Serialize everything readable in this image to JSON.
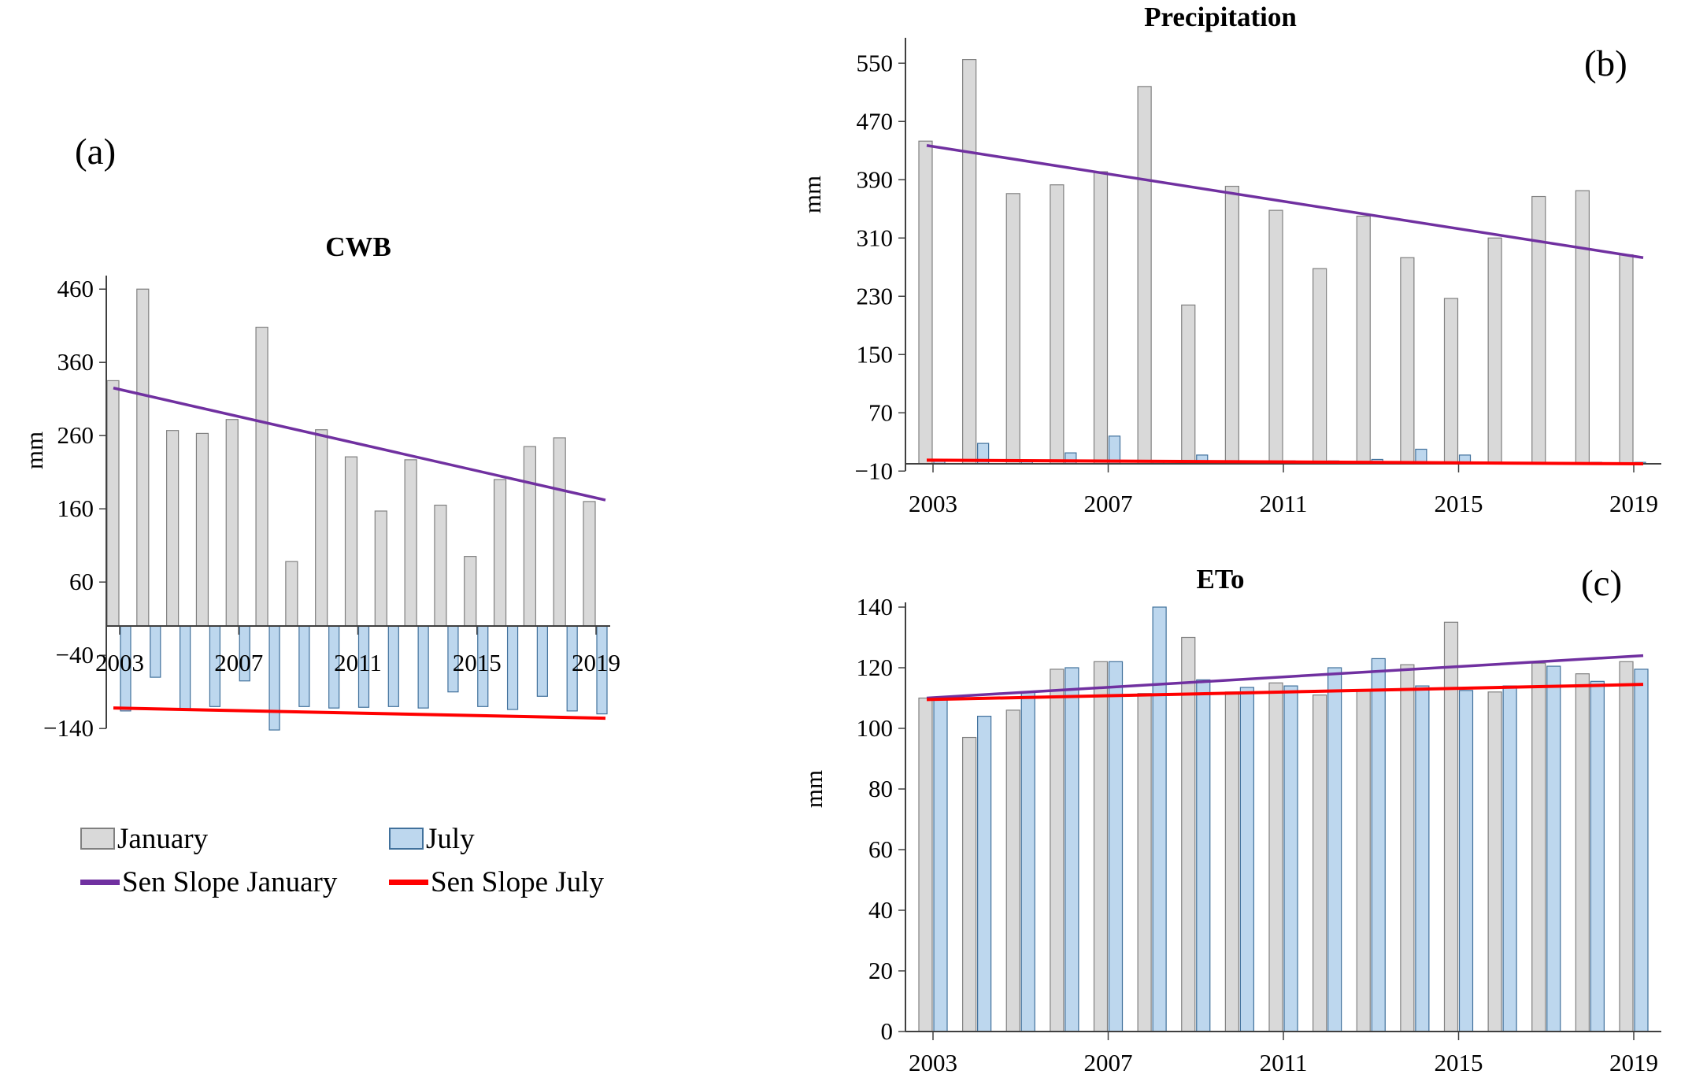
{
  "figure": {
    "background": "#ffffff",
    "panels": {
      "a": {
        "label": "(a)",
        "title": "CWB",
        "ylabel": "mm"
      },
      "b": {
        "label": "(b)",
        "title": "Precipitation",
        "ylabel": "mm"
      },
      "c": {
        "label": "(c)",
        "title": "ETo",
        "ylabel": "mm"
      }
    },
    "legend": {
      "january": "January",
      "july": "July",
      "sen_january": "Sen Slope January",
      "sen_july": "Sen Slope July"
    },
    "colors": {
      "january_fill": "#d9d9d9",
      "january_stroke": "#808080",
      "july_fill": "#bdd7ee",
      "july_stroke": "#41719c",
      "sen_january": "#7030a0",
      "sen_july": "#ff0000",
      "axis": "#404040",
      "text": "#000000"
    }
  },
  "chart_data": [
    {
      "id": "a",
      "type": "bar",
      "title": "CWB",
      "xlabel": "",
      "ylabel": "mm",
      "x": [
        2003,
        2004,
        2005,
        2006,
        2007,
        2008,
        2009,
        2010,
        2011,
        2012,
        2013,
        2014,
        2015,
        2016,
        2017,
        2018,
        2019
      ],
      "x_tick_labels": [
        2003,
        2007,
        2011,
        2015,
        2019
      ],
      "y_ticks": [
        460,
        360,
        260,
        160,
        60,
        -40,
        -140
      ],
      "ylim": [
        -150,
        480
      ],
      "grid": false,
      "legend_position": "below",
      "series": [
        {
          "name": "January",
          "role": "january_bars",
          "values": [
            335,
            460,
            267,
            263,
            282,
            408,
            88,
            268,
            231,
            157,
            227,
            165,
            95,
            200,
            245,
            257,
            170
          ]
        },
        {
          "name": "July",
          "role": "july_bars",
          "values": [
            -116,
            -70,
            -114,
            -110,
            -75,
            -142,
            -110,
            -112,
            -111,
            -110,
            -112,
            -90,
            -110,
            -114,
            -96,
            -116,
            -120
          ]
        },
        {
          "name": "Sen Slope January",
          "role": "sen_january",
          "trend": {
            "start": 325,
            "end": 172
          }
        },
        {
          "name": "Sen Slope July",
          "role": "sen_july",
          "trend": {
            "start": -112,
            "end": -126
          }
        }
      ]
    },
    {
      "id": "b",
      "type": "bar",
      "title": "Precipitation",
      "xlabel": "",
      "ylabel": "mm",
      "x": [
        2003,
        2004,
        2005,
        2006,
        2007,
        2008,
        2009,
        2010,
        2011,
        2012,
        2013,
        2014,
        2015,
        2016,
        2017,
        2018,
        2019
      ],
      "x_tick_labels": [
        2003,
        2007,
        2011,
        2015,
        2019
      ],
      "y_ticks": [
        550,
        470,
        390,
        310,
        230,
        150,
        70,
        -10
      ],
      "ylim": [
        -10,
        575
      ],
      "grid": false,
      "legend_position": "none",
      "series": [
        {
          "name": "January",
          "role": "january_bars",
          "values": [
            443,
            555,
            371,
            383,
            401,
            518,
            218,
            381,
            348,
            268,
            340,
            283,
            227,
            310,
            367,
            375,
            287
          ]
        },
        {
          "name": "July",
          "role": "july_bars",
          "values": [
            5,
            28,
            4,
            15,
            38,
            4,
            12,
            4,
            4,
            4,
            6,
            20,
            12,
            2,
            2,
            2,
            2
          ]
        },
        {
          "name": "Sen Slope January",
          "role": "sen_january",
          "trend": {
            "start": 437,
            "end": 283
          }
        },
        {
          "name": "Sen Slope July",
          "role": "sen_july",
          "trend": {
            "start": 5,
            "end": 0
          }
        }
      ]
    },
    {
      "id": "c",
      "type": "bar",
      "title": "ETo",
      "xlabel": "",
      "ylabel": "mm",
      "x": [
        2003,
        2004,
        2005,
        2006,
        2007,
        2008,
        2009,
        2010,
        2011,
        2012,
        2013,
        2014,
        2015,
        2016,
        2017,
        2018,
        2019
      ],
      "x_tick_labels": [
        2003,
        2007,
        2011,
        2015,
        2019
      ],
      "y_ticks": [
        140,
        120,
        100,
        80,
        60,
        40,
        20,
        0
      ],
      "ylim": [
        0,
        142
      ],
      "grid": false,
      "legend_position": "none",
      "series": [
        {
          "name": "January",
          "role": "january_bars",
          "values": [
            110,
            97,
            106,
            119.5,
            122,
            111.5,
            130,
            112,
            115,
            111,
            112.5,
            121,
            135,
            112,
            121.5,
            118,
            122
          ]
        },
        {
          "name": "July",
          "role": "july_bars",
          "values": [
            110,
            104,
            112,
            120,
            122,
            140,
            116,
            113.5,
            114,
            120,
            123,
            114,
            112.5,
            114,
            120.5,
            115.5,
            119.5
          ]
        },
        {
          "name": "Sen Slope January",
          "role": "sen_january",
          "trend": {
            "start": 110,
            "end": 124
          }
        },
        {
          "name": "Sen Slope July",
          "role": "sen_july",
          "trend": {
            "start": 109.5,
            "end": 114.5
          }
        }
      ]
    }
  ]
}
